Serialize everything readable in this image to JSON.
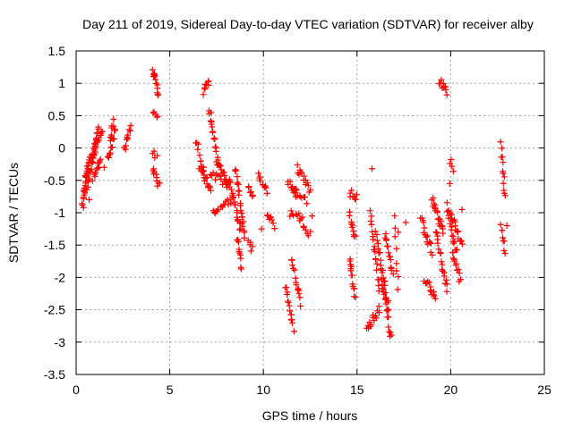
{
  "chart_data": {
    "type": "scatter",
    "title": "Day 211 of 2019, Sidereal Day-to-day VTEC variation (SDTVAR) for receiver alby",
    "xlabel": "GPS time / hours",
    "ylabel": "SDTVAR / TECUs",
    "xlim": [
      0,
      25
    ],
    "ylim": [
      -3.5,
      1.5
    ],
    "xticks": [
      0,
      5,
      10,
      15,
      20,
      25
    ],
    "xtick_labels": [
      "0",
      "5",
      "10",
      "15",
      "20",
      "25"
    ],
    "yticks": [
      1.5,
      1,
      0.5,
      0,
      -0.5,
      -1,
      -1.5,
      -2,
      -2.5,
      -3,
      -3.5
    ],
    "ytick_labels": [
      "1.5",
      "1",
      "0.5",
      "0",
      "-0.5",
      "-1",
      "-1.5",
      "-2",
      "-2.5",
      "-3",
      "-3.5"
    ],
    "grid": true,
    "marker": "plus",
    "color": "#ff0000",
    "segments": [
      {
        "x0": 0.35,
        "x1": 0.55,
        "y0": -0.9,
        "y1": -0.3,
        "n": 18
      },
      {
        "x0": 0.5,
        "x1": 0.8,
        "y0": -0.5,
        "y1": -0.1,
        "n": 14
      },
      {
        "x0": 0.6,
        "x1": 1.0,
        "y0": -0.6,
        "y1": 0.05,
        "n": 16
      },
      {
        "x0": 0.85,
        "x1": 1.2,
        "y0": -0.2,
        "y1": 0.3,
        "n": 16
      },
      {
        "x0": 0.9,
        "x1": 1.3,
        "y0": -0.45,
        "y1": -0.2,
        "n": 12
      },
      {
        "x0": 1.0,
        "x1": 1.4,
        "y0": 0.0,
        "y1": 0.3,
        "n": 12
      },
      {
        "x0": 1.7,
        "x1": 2.1,
        "y0": -0.2,
        "y1": 0.3,
        "n": 14
      },
      {
        "x0": 1.8,
        "x1": 2.0,
        "y0": 0.1,
        "y1": 0.42,
        "n": 8
      },
      {
        "x0": 2.6,
        "x1": 2.9,
        "y0": -0.05,
        "y1": 0.35,
        "n": 10
      },
      {
        "x0": 4.1,
        "x1": 4.4,
        "y0": 1.22,
        "y1": 0.85,
        "n": 14
      },
      {
        "x0": 4.1,
        "x1": 4.35,
        "y0": 0.6,
        "y1": 0.45,
        "n": 5
      },
      {
        "x0": 4.1,
        "x1": 4.3,
        "y0": -0.05,
        "y1": -0.12,
        "n": 4
      },
      {
        "x0": 4.1,
        "x1": 4.45,
        "y0": -0.3,
        "y1": -0.6,
        "n": 10
      },
      {
        "x0": 6.4,
        "x1": 6.8,
        "y0": 0.1,
        "y1": -0.35,
        "n": 10
      },
      {
        "x0": 6.6,
        "x1": 7.2,
        "y0": -0.3,
        "y1": -0.65,
        "n": 16
      },
      {
        "x0": 6.8,
        "x1": 7.1,
        "y0": 0.88,
        "y1": 1.02,
        "n": 8
      },
      {
        "x0": 7.1,
        "x1": 7.6,
        "y0": 0.6,
        "y1": -0.2,
        "n": 18
      },
      {
        "x0": 7.5,
        "x1": 8.1,
        "y0": -0.2,
        "y1": -0.55,
        "n": 14
      },
      {
        "x0": 7.3,
        "x1": 8.3,
        "y0": -1.0,
        "y1": -0.8,
        "n": 16
      },
      {
        "x0": 7.2,
        "x1": 8.2,
        "y0": -0.4,
        "y1": -0.6,
        "n": 14
      },
      {
        "x0": 8.2,
        "x1": 8.8,
        "y0": -0.5,
        "y1": -1.3,
        "n": 20
      },
      {
        "x0": 8.5,
        "x1": 9.0,
        "y0": -0.3,
        "y1": -1.4,
        "n": 22
      },
      {
        "x0": 8.6,
        "x1": 8.8,
        "y0": -1.4,
        "y1": -1.85,
        "n": 10
      },
      {
        "x0": 9.2,
        "x1": 9.45,
        "y0": -0.6,
        "y1": -0.75,
        "n": 6
      },
      {
        "x0": 9.2,
        "x1": 9.4,
        "y0": -1.48,
        "y1": -1.55,
        "n": 5
      },
      {
        "x0": 9.7,
        "x1": 10.2,
        "y0": -0.4,
        "y1": -0.7,
        "n": 10
      },
      {
        "x0": 10.2,
        "x1": 10.6,
        "y0": -1.0,
        "y1": -1.2,
        "n": 8
      },
      {
        "x0": 11.2,
        "x1": 11.6,
        "y0": -2.1,
        "y1": -2.8,
        "n": 14
      },
      {
        "x0": 11.5,
        "x1": 12.0,
        "y0": -1.7,
        "y1": -2.4,
        "n": 14
      },
      {
        "x0": 11.3,
        "x1": 11.8,
        "y0": -0.5,
        "y1": -0.7,
        "n": 10
      },
      {
        "x0": 11.4,
        "x1": 12.1,
        "y0": -1.0,
        "y1": -1.1,
        "n": 10
      },
      {
        "x0": 11.8,
        "x1": 12.5,
        "y0": -0.3,
        "y1": -0.65,
        "n": 14
      },
      {
        "x0": 11.6,
        "x1": 12.3,
        "y0": -0.7,
        "y1": -0.8,
        "n": 10
      },
      {
        "x0": 12.1,
        "x1": 12.5,
        "y0": -1.25,
        "y1": -1.35,
        "n": 6
      },
      {
        "x0": 14.6,
        "x1": 15.0,
        "y0": -0.7,
        "y1": -0.75,
        "n": 8
      },
      {
        "x0": 14.6,
        "x1": 14.9,
        "y0": -1.0,
        "y1": -1.4,
        "n": 10
      },
      {
        "x0": 14.6,
        "x1": 14.9,
        "y0": -1.7,
        "y1": -2.3,
        "n": 14
      },
      {
        "x0": 15.5,
        "x1": 16.2,
        "y0": -2.8,
        "y1": -2.5,
        "n": 14
      },
      {
        "x0": 15.7,
        "x1": 16.2,
        "y0": -1.0,
        "y1": -2.2,
        "n": 18
      },
      {
        "x0": 16.0,
        "x1": 16.7,
        "y0": -1.3,
        "y1": -2.5,
        "n": 22
      },
      {
        "x0": 16.3,
        "x1": 16.8,
        "y0": -2.0,
        "y1": -2.95,
        "n": 18
      },
      {
        "x0": 16.5,
        "x1": 16.9,
        "y0": -1.3,
        "y1": -2.0,
        "n": 14
      },
      {
        "x0": 17.0,
        "x1": 17.2,
        "y0": -1.1,
        "y1": -2.2,
        "n": 8
      },
      {
        "x0": 18.4,
        "x1": 19.0,
        "y0": -1.1,
        "y1": -1.6,
        "n": 16
      },
      {
        "x0": 18.6,
        "x1": 19.2,
        "y0": -2.0,
        "y1": -2.35,
        "n": 14
      },
      {
        "x0": 19.0,
        "x1": 19.6,
        "y0": -0.8,
        "y1": -1.3,
        "n": 20
      },
      {
        "x0": 19.2,
        "x1": 19.8,
        "y0": -1.3,
        "y1": -2.2,
        "n": 18
      },
      {
        "x0": 19.4,
        "x1": 19.8,
        "y0": 1.05,
        "y1": 0.85,
        "n": 10
      },
      {
        "x0": 19.8,
        "x1": 20.3,
        "y0": -0.9,
        "y1": -1.6,
        "n": 18
      },
      {
        "x0": 20.0,
        "x1": 20.6,
        "y0": -1.0,
        "y1": -1.5,
        "n": 16
      },
      {
        "x0": 20.1,
        "x1": 20.5,
        "y0": -1.6,
        "y1": -2.05,
        "n": 12
      },
      {
        "x0": 20.0,
        "x1": 20.15,
        "y0": -0.2,
        "y1": -0.3,
        "n": 4
      },
      {
        "x0": 22.7,
        "x1": 22.9,
        "y0": 0.05,
        "y1": -0.75,
        "n": 12
      },
      {
        "x0": 22.7,
        "x1": 22.9,
        "y0": -1.2,
        "y1": -1.6,
        "n": 8
      }
    ],
    "isolated": [
      [
        0.7,
        -0.8
      ],
      [
        1.5,
        -0.3
      ],
      [
        9.9,
        -1.25
      ],
      [
        12.6,
        -1.05
      ],
      [
        15.8,
        -0.32
      ],
      [
        17.2,
        -1.3
      ],
      [
        17.6,
        -1.15
      ],
      [
        19.95,
        -0.55
      ],
      [
        20.6,
        -0.95
      ],
      [
        23.0,
        -1.2
      ]
    ]
  }
}
